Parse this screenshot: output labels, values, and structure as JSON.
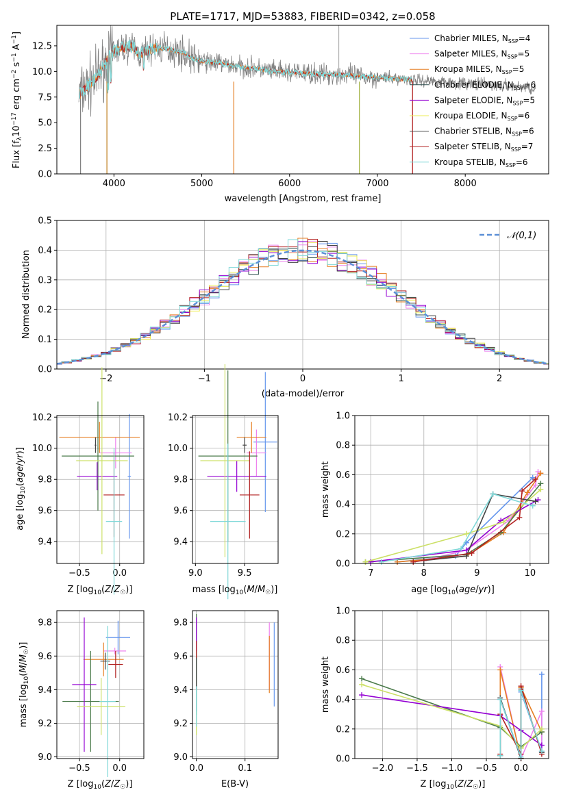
{
  "colors": {
    "spec_grey": "#808080",
    "series": [
      "#6495ed",
      "#ee82ee",
      "#e67e22",
      "#2f4f4f",
      "#9400d3",
      "#eeee55",
      "#444444",
      "#b22222",
      "#7fd8d8"
    ],
    "scatter": [
      "#6495ed",
      "#ee82ee",
      "#e67e22",
      "#4a7a4a",
      "#9400d3",
      "#cce066",
      "#444444",
      "#b22222",
      "#7fd8d8"
    ]
  },
  "chart_data": [
    {
      "id": "spectrum",
      "type": "line",
      "title": "PLATE=1717, MJD=53883, FIBERID=0342, z=0.058",
      "xlabel": "wavelength [Angstrom, rest frame]",
      "ylabel": "Flux [f_λ 10⁻¹⁷ erg cm⁻² s⁻¹ A⁻¹]",
      "xlim": [
        3350,
        8950
      ],
      "ylim": [
        0,
        14.5
      ],
      "xticks": [
        4000,
        5000,
        6000,
        7000,
        8000
      ],
      "yticks": [
        0.0,
        2.5,
        5.0,
        7.5,
        10.0,
        12.5
      ],
      "legend_position": "top-right",
      "legend": [
        "Chabrier MILES, N_SSP=4",
        "Salpeter MILES, N_SSP=5",
        "Kroupa MILES, N_SSP=5",
        "Chabrier ELODIE, N_SSP=6",
        "Salpeter ELODIE, N_SSP=5",
        "Kroupa ELODIE, N_SSP=6",
        "Chabrier STELIB, N_SSP=6",
        "Salpeter STELIB, N_SSP=7",
        "Kroupa STELIB, N_SSP=6"
      ],
      "model_continuum": {
        "x": [
          3620,
          3700,
          3800,
          3900,
          4000,
          4100,
          4200,
          4300,
          4400,
          4500,
          4600,
          4700,
          4800,
          4900,
          5000,
          5200,
          5400,
          5600,
          5800,
          6000,
          6200,
          6400,
          6600,
          6800,
          7000,
          7200,
          7400
        ],
        "y": [
          7.8,
          8.6,
          9.3,
          10.8,
          11.9,
          12.3,
          12.5,
          11.6,
          12.1,
          12.3,
          12.2,
          12.0,
          11.8,
          11.2,
          11.0,
          10.8,
          10.5,
          10.3,
          10.0,
          9.9,
          9.8,
          9.7,
          9.7,
          9.5,
          9.4,
          9.3,
          9.2
        ]
      }
    },
    {
      "id": "residuals",
      "type": "line",
      "xlabel": "(data-model)/error",
      "ylabel": "Normed distribution",
      "xlim": [
        -2.5,
        2.5
      ],
      "ylim": [
        0,
        0.5
      ],
      "xticks": [
        -2,
        -1,
        0,
        1,
        2
      ],
      "yticks": [
        0.0,
        0.1,
        0.2,
        0.3,
        0.4,
        0.5
      ],
      "grid": true,
      "legend_position": "top-right",
      "legend": [
        "𝒩(0,1)"
      ]
    },
    {
      "id": "age_vs_Z",
      "type": "scatter",
      "xlabel": "Z [log₁₀(Z/Z☉)]",
      "ylabel": "age  [log₁₀(age/yr)]",
      "xlim": [
        -0.78,
        0.3
      ],
      "ylim": [
        9.26,
        10.21
      ],
      "xticks": [
        -0.5,
        0.0
      ],
      "yticks": [
        9.4,
        9.6,
        9.8,
        10.0,
        10.2
      ],
      "grid": true,
      "points": [
        {
          "x": 0.12,
          "y": 9.82,
          "xerr": 0.02,
          "yerr": 0.4
        },
        {
          "x": -0.05,
          "y": 9.97,
          "xerr": 0.2,
          "yerr": 0.1
        },
        {
          "x": -0.25,
          "y": 10.07,
          "xerr": 0.5,
          "yerr": 0.1
        },
        {
          "x": -0.27,
          "y": 9.95,
          "xerr": 0.45,
          "yerr": 0.35
        },
        {
          "x": -0.28,
          "y": 9.82,
          "xerr": 0.25,
          "yerr": 0.09
        },
        {
          "x": -0.22,
          "y": 9.92,
          "xerr": 0.32,
          "yerr": 0.6
        },
        {
          "x": -0.3,
          "y": 10.02,
          "xerr": 0.01,
          "yerr": 0.05
        },
        {
          "x": -0.07,
          "y": 9.7,
          "xerr": 0.13,
          "yerr": 0.27
        },
        {
          "x": -0.07,
          "y": 9.53,
          "xerr": 0.1,
          "yerr": 0.47
        }
      ]
    },
    {
      "id": "age_vs_mass",
      "type": "scatter",
      "xlabel": "mass [log₁₀(M/M☉)]",
      "ylabel": "",
      "xlim": [
        8.97,
        9.84
      ],
      "ylim": [
        9.26,
        10.21
      ],
      "xticks": [
        9.0,
        9.5
      ],
      "yticks": [
        9.4,
        9.6,
        9.8,
        10.0,
        10.2
      ],
      "grid": true,
      "points": [
        {
          "x": 9.71,
          "y": 10.04,
          "xerr": 0.12,
          "yerr": 0.45
        },
        {
          "x": 9.62,
          "y": 9.97,
          "xerr": 0.1,
          "yerr": 0.15
        },
        {
          "x": 9.57,
          "y": 10.07,
          "xerr": 0.15,
          "yerr": 0.1
        },
        {
          "x": 9.33,
          "y": 9.95,
          "xerr": 0.3,
          "yerr": 0.55
        },
        {
          "x": 9.42,
          "y": 9.82,
          "xerr": 0.3,
          "yerr": 0.1
        },
        {
          "x": 9.3,
          "y": 9.92,
          "xerr": 0.25,
          "yerr": 0.62
        },
        {
          "x": 9.5,
          "y": 10.02,
          "xerr": 0.02,
          "yerr": 0.05
        },
        {
          "x": 9.55,
          "y": 9.7,
          "xerr": 0.1,
          "yerr": 0.28
        },
        {
          "x": 9.33,
          "y": 9.53,
          "xerr": 0.18,
          "yerr": 0.5
        }
      ]
    },
    {
      "id": "massweight_vs_age",
      "type": "line",
      "xlabel": "age  [log₁₀(age/yr)]",
      "ylabel": "mass weight",
      "xlim": [
        6.7,
        10.35
      ],
      "ylim": [
        0,
        1.0
      ],
      "xticks": [
        7,
        8,
        9,
        10
      ],
      "yticks": [
        0.0,
        0.2,
        0.4,
        0.6,
        0.8,
        1.0
      ],
      "grid": true,
      "series": [
        {
          "x": [
            7.5,
            8.6,
            8.8,
            10.05
          ],
          "y": [
            0.01,
            0.05,
            0.14,
            0.58
          ]
        },
        {
          "x": [
            8.0,
            8.8,
            9.6,
            10.1,
            10.15
          ],
          "y": [
            0.02,
            0.09,
            0.29,
            0.53,
            0.62
          ]
        },
        {
          "x": [
            7.5,
            8.8,
            9.5,
            9.95,
            10.2
          ],
          "y": [
            0.01,
            0.05,
            0.21,
            0.48,
            0.61
          ]
        },
        {
          "x": [
            6.9,
            8.8,
            9.45,
            10.2
          ],
          "y": [
            0.01,
            0.06,
            0.21,
            0.54
          ]
        },
        {
          "x": [
            7.0,
            8.8,
            9.45,
            10.15
          ],
          "y": [
            0.01,
            0.09,
            0.29,
            0.43
          ]
        },
        {
          "x": [
            6.9,
            8.8,
            9.5,
            10.2
          ],
          "y": [
            0.01,
            0.2,
            0.28,
            0.5
          ]
        },
        {
          "x": [
            8.0,
            8.8,
            9.3,
            10.1
          ],
          "y": [
            0.02,
            0.05,
            0.47,
            0.42
          ]
        },
        {
          "x": [
            7.8,
            8.9,
            9.8,
            9.85,
            10.1
          ],
          "y": [
            0.01,
            0.07,
            0.31,
            0.49,
            0.57
          ]
        },
        {
          "x": [
            7.2,
            8.7,
            9.3,
            10.05
          ],
          "y": [
            0.01,
            0.1,
            0.47,
            0.39
          ]
        }
      ]
    },
    {
      "id": "mass_vs_Z",
      "type": "scatter",
      "xlabel": "Z [log₁₀(Z/Z☉)]",
      "ylabel": "mass [log₁₀(M/M☉)]",
      "xlim": [
        -0.78,
        0.3
      ],
      "ylim": [
        8.99,
        9.87
      ],
      "xticks": [
        -0.5,
        0.0
      ],
      "yticks": [
        9.0,
        9.2,
        9.4,
        9.6,
        9.8
      ],
      "grid": true,
      "points": [
        {
          "x": -0.02,
          "y": 9.71,
          "xerr": 0.15,
          "yerr": 0.1
        },
        {
          "x": -0.06,
          "y": 9.63,
          "xerr": 0.14,
          "yerr": 0.02
        },
        {
          "x": -0.2,
          "y": 9.58,
          "xerr": 0.25,
          "yerr": 0.1
        },
        {
          "x": -0.36,
          "y": 9.33,
          "xerr": 0.35,
          "yerr": 0.3
        },
        {
          "x": -0.44,
          "y": 9.43,
          "xerr": 0.15,
          "yerr": 0.4
        },
        {
          "x": -0.23,
          "y": 9.3,
          "xerr": 0.3,
          "yerr": 0.17
        },
        {
          "x": -0.18,
          "y": 9.57,
          "xerr": 0.06,
          "yerr": 0.05
        },
        {
          "x": -0.05,
          "y": 9.55,
          "xerr": 0.09,
          "yerr": 0.08
        },
        {
          "x": -0.15,
          "y": 9.33,
          "xerr": 0.1,
          "yerr": 0.45
        }
      ]
    },
    {
      "id": "mass_vs_ebv",
      "type": "scatter",
      "xlabel": "E(B-V)",
      "ylabel": "",
      "xlim": [
        -0.008,
        0.168
      ],
      "ylim": [
        8.99,
        9.87
      ],
      "xticks": [
        0.0,
        0.1
      ],
      "yticks": [
        9.0,
        9.2,
        9.4,
        9.6,
        9.8
      ],
      "grid": true,
      "points": [
        {
          "x": 0.16,
          "y": 9.55,
          "xerr": 0.0,
          "yerr": 0.25
        },
        {
          "x": 0.15,
          "y": 9.6,
          "xerr": 0.0,
          "yerr": 0.2
        },
        {
          "x": 0.15,
          "y": 9.55,
          "xerr": 0.0,
          "yerr": 0.17
        },
        {
          "x": 0.0,
          "y": 9.55,
          "xerr": 0.0,
          "yerr": 0.3
        },
        {
          "x": 0.0,
          "y": 9.73,
          "xerr": 0.0,
          "yerr": 0.1
        },
        {
          "x": 0.0,
          "y": 9.2,
          "xerr": 0.0,
          "yerr": 0.07
        },
        {
          "x": 0.0,
          "y": 9.5,
          "xerr": 0.0,
          "yerr": 0.1
        },
        {
          "x": 0.0,
          "y": 9.64,
          "xerr": 0.0,
          "yerr": 0.05
        },
        {
          "x": 0.0,
          "y": 9.3,
          "xerr": 0.0,
          "yerr": 0.12
        }
      ]
    },
    {
      "id": "massweight_vs_Z",
      "type": "line",
      "xlabel": "Z [log₁₀(Z/Z☉)]",
      "ylabel": "mass weight",
      "xlim": [
        -2.4,
        0.4
      ],
      "ylim": [
        0,
        1.0
      ],
      "xticks": [
        -2.0,
        -1.5,
        -1.0,
        -0.5,
        0.0
      ],
      "yticks": [
        0.0,
        0.2,
        0.4,
        0.6,
        0.8,
        1.0
      ],
      "grid": true,
      "series": [
        {
          "x": [
            -0.3,
            -0.3,
            0.0,
            0.0,
            0.3,
            0.3
          ],
          "y": [
            0.02,
            0.4,
            0.0,
            0.45,
            0.05,
            0.57
          ]
        },
        {
          "x": [
            -0.3,
            -0.3,
            0.0,
            0.3,
            0.3
          ],
          "y": [
            0.02,
            0.62,
            0.0,
            0.32,
            0.05
          ]
        },
        {
          "x": [
            -0.3,
            -0.3,
            0.0,
            0.0,
            0.3
          ],
          "y": [
            0.02,
            0.6,
            0.0,
            0.48,
            0.18
          ]
        },
        {
          "x": [
            -2.3,
            -0.3,
            0.0,
            0.3
          ],
          "y": [
            0.54,
            0.21,
            0.08,
            0.18
          ]
        },
        {
          "x": [
            -2.3,
            -0.3,
            0.0,
            0.3
          ],
          "y": [
            0.43,
            0.29,
            0.19,
            0.09
          ]
        },
        {
          "x": [
            -2.3,
            -0.3,
            0.0,
            0.3
          ],
          "y": [
            0.5,
            0.22,
            0.07,
            0.2
          ]
        },
        {
          "x": [
            -0.3,
            -0.3,
            0.0,
            0.0,
            0.3
          ],
          "y": [
            0.02,
            0.41,
            0.0,
            0.47,
            0.04
          ]
        },
        {
          "x": [
            -0.3,
            -0.3,
            0.0,
            0.0,
            0.3
          ],
          "y": [
            0.03,
            0.3,
            0.03,
            0.49,
            0.03
          ]
        },
        {
          "x": [
            -0.3,
            -0.3,
            0.0,
            0.0,
            0.3
          ],
          "y": [
            0.02,
            0.4,
            0.01,
            0.46,
            0.05
          ]
        }
      ]
    }
  ]
}
